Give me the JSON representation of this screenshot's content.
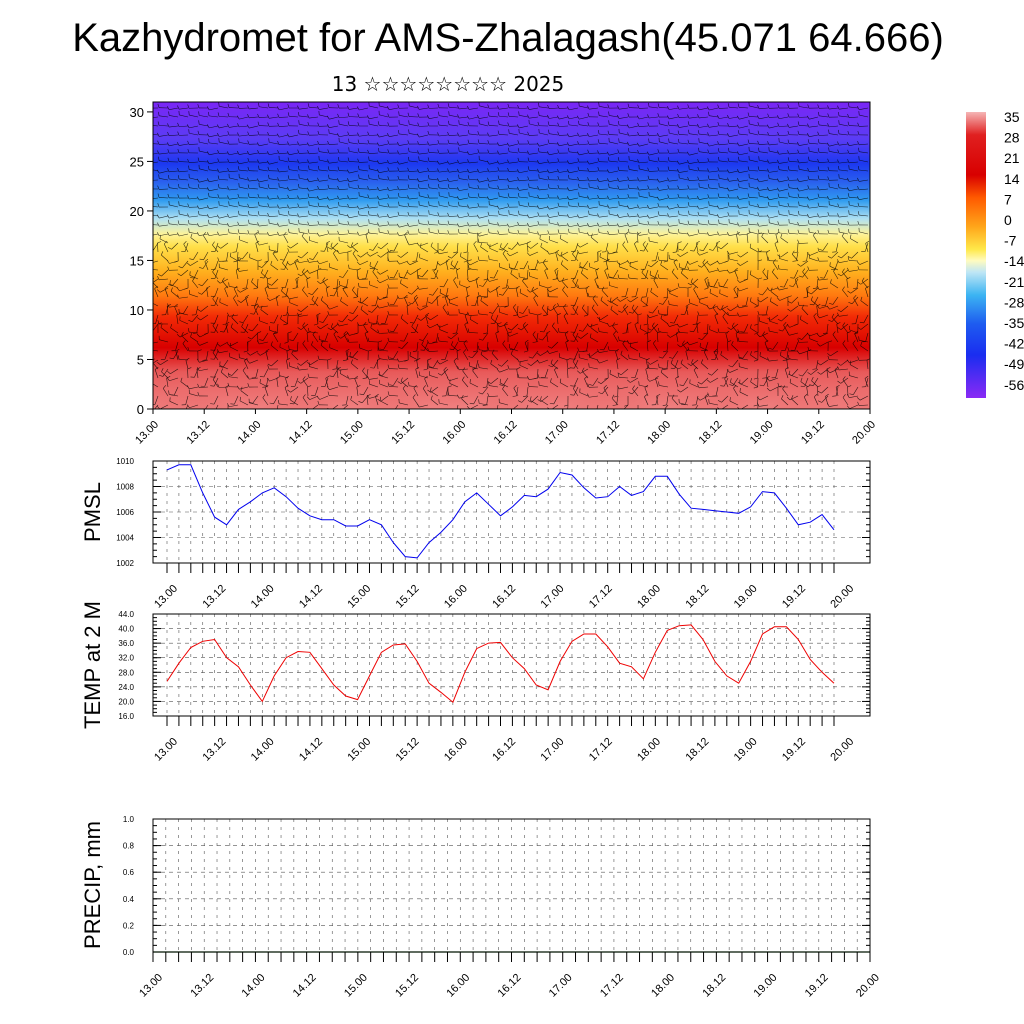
{
  "title": "Kazhydromet for AMS-Zhalagash(45.071 64.666)",
  "subtitle": "13 ☆☆☆☆☆☆☆☆ 2025",
  "colors": {
    "pmsl_line": "#0000ee",
    "temp_line": "#ee0000",
    "precip_line": "#006400"
  },
  "chart_data": [
    {
      "type": "heatmap",
      "panel": "cross-section",
      "x_ticks": [
        "13.00",
        "13.12",
        "14.00",
        "14.12",
        "15.00",
        "15.12",
        "16.00",
        "16.12",
        "17.00",
        "17.12",
        "18.00",
        "18.12",
        "19.00",
        "19.12",
        "20.00"
      ],
      "y_ticks": [
        "0",
        "5",
        "10",
        "15",
        "20",
        "25",
        "30"
      ],
      "ylim": [
        0,
        31
      ],
      "colorbar": {
        "labels": [
          "35",
          "28",
          "21",
          "14",
          "7",
          "0",
          "-7",
          "-14",
          "-21",
          "-28",
          "-35",
          "-42",
          "-49",
          "-56"
        ],
        "range": [
          -60,
          38
        ]
      },
      "overlay": "wind barbs"
    },
    {
      "type": "line",
      "panel": "pmsl",
      "ylabel": "PMSL",
      "ylim": [
        1002,
        1010
      ],
      "y_ticks": [
        "1002",
        "1004",
        "1006",
        "1008",
        "1010"
      ],
      "x_ticks": [
        "13.00",
        "13.12",
        "14.00",
        "14.12",
        "15.00",
        "15.12",
        "16.00",
        "16.12",
        "17.00",
        "17.12",
        "18.00",
        "18.12",
        "19.00",
        "19.12",
        "20.00"
      ],
      "x_hours": [
        0,
        3,
        6,
        9,
        12,
        15,
        18,
        21,
        24,
        27,
        30,
        33,
        36,
        39,
        42,
        45,
        48,
        51,
        54,
        57,
        60,
        63,
        66,
        69,
        72,
        75,
        78,
        81,
        84,
        87,
        90,
        93,
        96,
        99,
        102,
        105,
        108,
        111,
        114,
        117,
        120,
        123,
        126,
        129,
        132,
        135,
        138,
        141,
        144,
        147,
        150,
        153,
        156,
        159,
        162,
        165,
        168
      ],
      "values": [
        1009.3,
        1009.7,
        1009.7,
        1007.5,
        1005.6,
        1005.0,
        1006.2,
        1006.8,
        1007.5,
        1007.9,
        1007.2,
        1006.3,
        1005.7,
        1005.4,
        1005.4,
        1004.9,
        1004.9,
        1005.4,
        1005.0,
        1003.6,
        1002.5,
        1002.4,
        1003.6,
        1004.4,
        1005.4,
        1006.8,
        1007.5,
        1006.6,
        1005.7,
        1006.4,
        1007.3,
        1007.2,
        1007.8,
        1009.1,
        1008.9,
        1007.9,
        1007.1,
        1007.2,
        1008.0,
        1007.3,
        1007.6,
        1008.8,
        1008.8,
        1007.4,
        1006.3,
        1006.2,
        1006.1,
        1006.0,
        1005.9,
        1006.4,
        1007.6,
        1007.5,
        1006.3,
        1005.0,
        1005.2,
        1005.8,
        1004.6
      ]
    },
    {
      "type": "line",
      "panel": "temp",
      "ylabel": "TEMP at 2 M",
      "ylim": [
        16,
        44
      ],
      "y_ticks": [
        "16.0",
        "20.0",
        "24.0",
        "28.0",
        "32.0",
        "36.0",
        "40.0",
        "44.0"
      ],
      "x_ticks": [
        "13.00",
        "13.12",
        "14.00",
        "14.12",
        "15.00",
        "15.12",
        "16.00",
        "16.12",
        "17.00",
        "17.12",
        "18.00",
        "18.12",
        "19.00",
        "19.12",
        "20.00"
      ],
      "x_hours": [
        0,
        3,
        6,
        9,
        12,
        15,
        18,
        21,
        24,
        27,
        30,
        33,
        36,
        39,
        42,
        45,
        48,
        51,
        54,
        57,
        60,
        63,
        66,
        69,
        72,
        75,
        78,
        81,
        84,
        87,
        90,
        93,
        96,
        99,
        102,
        105,
        108,
        111,
        114,
        117,
        120,
        123,
        126,
        129,
        132,
        135,
        138,
        141,
        144,
        147,
        150,
        153,
        156,
        159,
        162,
        165,
        168
      ],
      "values": [
        25.5,
        30.5,
        34.8,
        36.5,
        37.0,
        32.0,
        29.5,
        24.5,
        20.0,
        27.0,
        32.0,
        33.7,
        33.5,
        29.0,
        24.5,
        21.5,
        20.5,
        27.0,
        33.5,
        35.5,
        35.8,
        31.0,
        25.0,
        22.5,
        19.8,
        28.0,
        34.5,
        36.0,
        36.2,
        32.0,
        29.0,
        24.5,
        23.2,
        31.0,
        36.5,
        38.5,
        38.5,
        35.0,
        30.5,
        29.5,
        26.2,
        33.5,
        39.5,
        40.8,
        41.0,
        37.0,
        31.0,
        27.0,
        25.0,
        31.0,
        38.5,
        40.5,
        40.5,
        37.0,
        31.5,
        28.0,
        25.0
      ]
    },
    {
      "type": "line",
      "panel": "precip",
      "ylabel": "PRECIP, mm",
      "ylim": [
        0,
        1
      ],
      "y_ticks": [
        "0.0",
        "0.2",
        "0.4",
        "0.6",
        "0.8",
        "1.0"
      ],
      "x_ticks": [
        "13.00",
        "13.12",
        "14.00",
        "14.12",
        "15.00",
        "15.12",
        "16.00",
        "16.12",
        "17.00",
        "17.12",
        "18.00",
        "18.12",
        "19.00",
        "19.12",
        "20.00"
      ],
      "values": [
        0,
        0,
        0,
        0,
        0,
        0,
        0,
        0,
        0,
        0,
        0,
        0,
        0,
        0,
        0
      ]
    }
  ]
}
